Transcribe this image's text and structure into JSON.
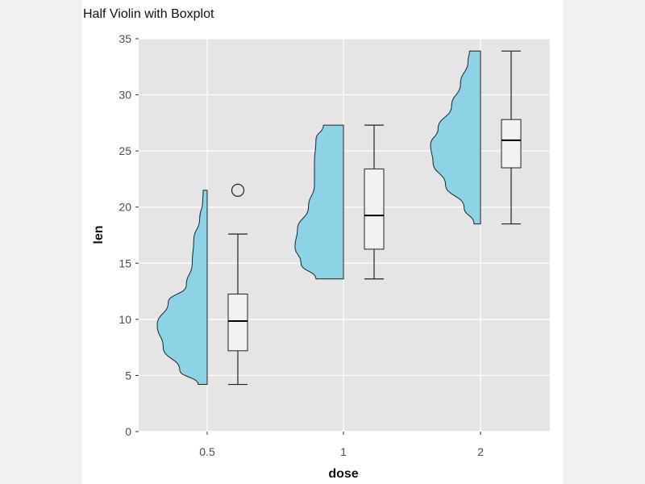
{
  "chart_data": {
    "type": "violin",
    "title": "Half Violin with Boxplot",
    "xlabel": "dose",
    "ylabel": "len",
    "categories": [
      "0.5",
      "1",
      "2"
    ],
    "ylim": [
      0,
      35
    ],
    "yticks": [
      0,
      5,
      10,
      15,
      20,
      25,
      30,
      35
    ],
    "grid": true,
    "colors": {
      "panel": "#e5e5e5",
      "grid": "#ffffff",
      "violin_fill": "#8dd3e6",
      "outline": "#222222",
      "box_fill": "#f2f2f2"
    },
    "violins": [
      {
        "category": "0.5",
        "profile": [
          [
            4.2,
            0.18
          ],
          [
            5.5,
            0.55
          ],
          [
            7.5,
            0.88
          ],
          [
            9.5,
            1.0
          ],
          [
            11.5,
            0.78
          ],
          [
            13.0,
            0.42
          ],
          [
            15.0,
            0.3
          ],
          [
            17.0,
            0.27
          ],
          [
            19.0,
            0.15
          ],
          [
            20.5,
            0.09
          ],
          [
            21.5,
            0.08
          ]
        ]
      },
      {
        "category": "1",
        "profile": [
          [
            13.6,
            0.55
          ],
          [
            15.0,
            0.85
          ],
          [
            16.5,
            0.97
          ],
          [
            18.0,
            0.92
          ],
          [
            20.0,
            0.7
          ],
          [
            22.0,
            0.58
          ],
          [
            24.0,
            0.58
          ],
          [
            26.0,
            0.55
          ],
          [
            27.3,
            0.4
          ]
        ]
      },
      {
        "category": "2",
        "profile": [
          [
            18.5,
            0.13
          ],
          [
            20.0,
            0.33
          ],
          [
            22.0,
            0.7
          ],
          [
            24.0,
            0.95
          ],
          [
            25.5,
            1.0
          ],
          [
            27.0,
            0.85
          ],
          [
            29.0,
            0.58
          ],
          [
            31.0,
            0.4
          ],
          [
            33.0,
            0.25
          ],
          [
            33.9,
            0.22
          ]
        ]
      }
    ],
    "boxplots": [
      {
        "category": "0.5",
        "min": 4.2,
        "q1": 7.2,
        "median": 9.85,
        "q3": 12.25,
        "max": 17.6,
        "outliers": [
          21.5
        ]
      },
      {
        "category": "1",
        "min": 13.6,
        "q1": 16.25,
        "median": 19.25,
        "q3": 23.4,
        "max": 27.3,
        "outliers": []
      },
      {
        "category": "2",
        "min": 18.5,
        "q1": 23.5,
        "median": 25.95,
        "q3": 27.8,
        "max": 33.9,
        "outliers": []
      }
    ]
  }
}
